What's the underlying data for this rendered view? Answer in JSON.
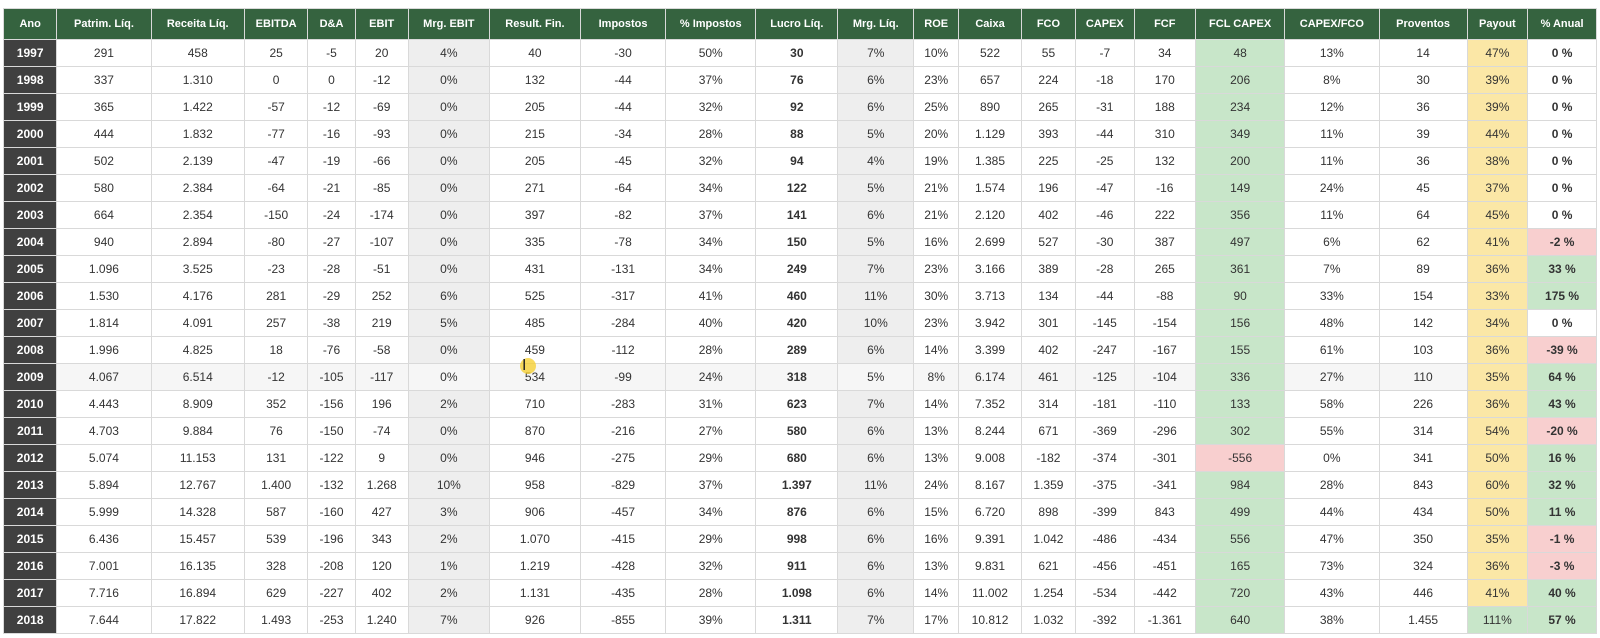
{
  "table": {
    "headers": [
      "Ano",
      "Patrim. Líq.",
      "Receita Líq.",
      "EBITDA",
      "D&A",
      "EBIT",
      "Mrg. EBIT",
      "Result. Fin.",
      "Impostos",
      "% Impostos",
      "Lucro Líq.",
      "Mrg. Líq.",
      "ROE",
      "Caixa",
      "FCO",
      "CAPEX",
      "FCF",
      "FCL CAPEX",
      "CAPEX/FCO",
      "Proventos",
      "Payout",
      "% Anual"
    ],
    "rows": [
      [
        "1997",
        "291",
        "458",
        "25",
        "-5",
        "20",
        "4%",
        "40",
        "-30",
        "50%",
        "30",
        "7%",
        "10%",
        "522",
        "55",
        "-7",
        "34",
        "48",
        "13%",
        "14",
        "47%",
        "0 %"
      ],
      [
        "1998",
        "337",
        "1.310",
        "0",
        "0",
        "-12",
        "0%",
        "132",
        "-44",
        "37%",
        "76",
        "6%",
        "23%",
        "657",
        "224",
        "-18",
        "170",
        "206",
        "8%",
        "30",
        "39%",
        "0 %"
      ],
      [
        "1999",
        "365",
        "1.422",
        "-57",
        "-12",
        "-69",
        "0%",
        "205",
        "-44",
        "32%",
        "92",
        "6%",
        "25%",
        "890",
        "265",
        "-31",
        "188",
        "234",
        "12%",
        "36",
        "39%",
        "0 %"
      ],
      [
        "2000",
        "444",
        "1.832",
        "-77",
        "-16",
        "-93",
        "0%",
        "215",
        "-34",
        "28%",
        "88",
        "5%",
        "20%",
        "1.129",
        "393",
        "-44",
        "310",
        "349",
        "11%",
        "39",
        "44%",
        "0 %"
      ],
      [
        "2001",
        "502",
        "2.139",
        "-47",
        "-19",
        "-66",
        "0%",
        "205",
        "-45",
        "32%",
        "94",
        "4%",
        "19%",
        "1.385",
        "225",
        "-25",
        "132",
        "200",
        "11%",
        "36",
        "38%",
        "0 %"
      ],
      [
        "2002",
        "580",
        "2.384",
        "-64",
        "-21",
        "-85",
        "0%",
        "271",
        "-64",
        "34%",
        "122",
        "5%",
        "21%",
        "1.574",
        "196",
        "-47",
        "-16",
        "149",
        "24%",
        "45",
        "37%",
        "0 %"
      ],
      [
        "2003",
        "664",
        "2.354",
        "-150",
        "-24",
        "-174",
        "0%",
        "397",
        "-82",
        "37%",
        "141",
        "6%",
        "21%",
        "2.120",
        "402",
        "-46",
        "222",
        "356",
        "11%",
        "64",
        "45%",
        "0 %"
      ],
      [
        "2004",
        "940",
        "2.894",
        "-80",
        "-27",
        "-107",
        "0%",
        "335",
        "-78",
        "34%",
        "150",
        "5%",
        "16%",
        "2.699",
        "527",
        "-30",
        "387",
        "497",
        "6%",
        "62",
        "41%",
        "-2 %"
      ],
      [
        "2005",
        "1.096",
        "3.525",
        "-23",
        "-28",
        "-51",
        "0%",
        "431",
        "-131",
        "34%",
        "249",
        "7%",
        "23%",
        "3.166",
        "389",
        "-28",
        "265",
        "361",
        "7%",
        "89",
        "36%",
        "33 %"
      ],
      [
        "2006",
        "1.530",
        "4.176",
        "281",
        "-29",
        "252",
        "6%",
        "525",
        "-317",
        "41%",
        "460",
        "11%",
        "30%",
        "3.713",
        "134",
        "-44",
        "-88",
        "90",
        "33%",
        "154",
        "33%",
        "175 %"
      ],
      [
        "2007",
        "1.814",
        "4.091",
        "257",
        "-38",
        "219",
        "5%",
        "485",
        "-284",
        "40%",
        "420",
        "10%",
        "23%",
        "3.942",
        "301",
        "-145",
        "-154",
        "156",
        "48%",
        "142",
        "34%",
        "0 %"
      ],
      [
        "2008",
        "1.996",
        "4.825",
        "18",
        "-76",
        "-58",
        "0%",
        "459",
        "-112",
        "28%",
        "289",
        "6%",
        "14%",
        "3.399",
        "402",
        "-247",
        "-167",
        "155",
        "61%",
        "103",
        "36%",
        "-39 %"
      ],
      [
        "2009",
        "4.067",
        "6.514",
        "-12",
        "-105",
        "-117",
        "0%",
        "534",
        "-99",
        "24%",
        "318",
        "5%",
        "8%",
        "6.174",
        "461",
        "-125",
        "-104",
        "336",
        "27%",
        "110",
        "35%",
        "64 %"
      ],
      [
        "2010",
        "4.443",
        "8.909",
        "352",
        "-156",
        "196",
        "2%",
        "710",
        "-283",
        "31%",
        "623",
        "7%",
        "14%",
        "7.352",
        "314",
        "-181",
        "-110",
        "133",
        "58%",
        "226",
        "36%",
        "43 %"
      ],
      [
        "2011",
        "4.703",
        "9.884",
        "76",
        "-150",
        "-74",
        "0%",
        "870",
        "-216",
        "27%",
        "580",
        "6%",
        "13%",
        "8.244",
        "671",
        "-369",
        "-296",
        "302",
        "55%",
        "314",
        "54%",
        "-20 %"
      ],
      [
        "2012",
        "5.074",
        "11.153",
        "131",
        "-122",
        "9",
        "0%",
        "946",
        "-275",
        "29%",
        "680",
        "6%",
        "13%",
        "9.008",
        "-182",
        "-374",
        "-301",
        "-556",
        "0%",
        "341",
        "50%",
        "16 %"
      ],
      [
        "2013",
        "5.894",
        "12.767",
        "1.400",
        "-132",
        "1.268",
        "10%",
        "958",
        "-829",
        "37%",
        "1.397",
        "11%",
        "24%",
        "8.167",
        "1.359",
        "-375",
        "-341",
        "984",
        "28%",
        "843",
        "60%",
        "32 %"
      ],
      [
        "2014",
        "5.999",
        "14.328",
        "587",
        "-160",
        "427",
        "3%",
        "906",
        "-457",
        "34%",
        "876",
        "6%",
        "15%",
        "6.720",
        "898",
        "-399",
        "843",
        "499",
        "44%",
        "434",
        "50%",
        "11 %"
      ],
      [
        "2015",
        "6.436",
        "15.457",
        "539",
        "-196",
        "343",
        "2%",
        "1.070",
        "-415",
        "29%",
        "998",
        "6%",
        "16%",
        "9.391",
        "1.042",
        "-486",
        "-434",
        "556",
        "47%",
        "350",
        "35%",
        "-1 %"
      ],
      [
        "2016",
        "7.001",
        "16.135",
        "328",
        "-208",
        "120",
        "1%",
        "1.219",
        "-428",
        "32%",
        "911",
        "6%",
        "13%",
        "9.831",
        "621",
        "-456",
        "-451",
        "165",
        "73%",
        "324",
        "36%",
        "-3 %"
      ],
      [
        "2017",
        "7.716",
        "16.894",
        "629",
        "-227",
        "402",
        "2%",
        "1.131",
        "-435",
        "28%",
        "1.098",
        "6%",
        "14%",
        "11.002",
        "1.254",
        "-534",
        "-442",
        "720",
        "43%",
        "446",
        "41%",
        "40 %"
      ],
      [
        "2018",
        "7.644",
        "17.822",
        "1.493",
        "-253",
        "1.240",
        "7%",
        "926",
        "-855",
        "39%",
        "1.311",
        "7%",
        "17%",
        "10.812",
        "1.032",
        "-392",
        "-1.361",
        "640",
        "38%",
        "1.455",
        "111%",
        "57 %"
      ]
    ]
  },
  "colors": {
    "header_green": "#35633f",
    "header_dark": "#404040",
    "header_red": "#c62828",
    "header_blue": "#1c2e7a",
    "header_gold": "#e3a21a",
    "positive_bg": "#c8e6c9",
    "negative_bg": "#f8cfcf",
    "payout_bg": "#fbe7a6"
  },
  "cursor": {
    "icon": "text-cursor-icon"
  }
}
